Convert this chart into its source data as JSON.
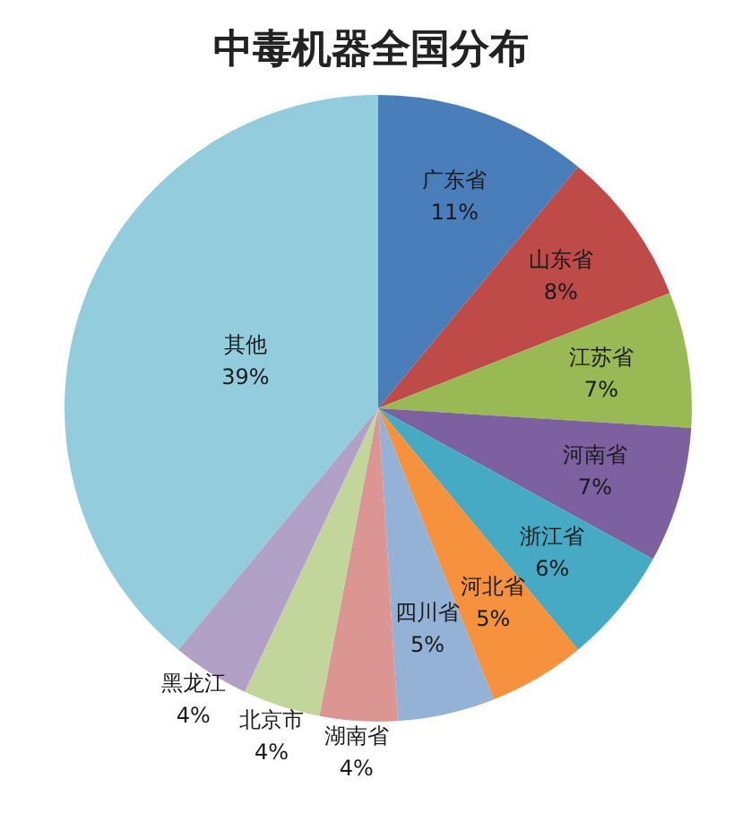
{
  "chart_data": {
    "type": "pie",
    "title": "中毒机器全国分布",
    "categories": [
      "广东省",
      "山东省",
      "江苏省",
      "河南省",
      "浙江省",
      "河北省",
      "四川省",
      "湖南省",
      "北京市",
      "黑龙江",
      "其他"
    ],
    "values": [
      11,
      8,
      7,
      7,
      6,
      5,
      5,
      4,
      4,
      4,
      39
    ],
    "value_labels": [
      "11%",
      "8%",
      "7%",
      "7%",
      "6%",
      "5%",
      "5%",
      "4%",
      "4%",
      "4%",
      "39%"
    ],
    "colors": [
      "#4a7ebb",
      "#be4b48",
      "#98b954",
      "#7d60a0",
      "#46aac5",
      "#f6923d",
      "#94b2d6",
      "#db9694",
      "#c2d59a",
      "#b2a1c7",
      "#93cddd"
    ],
    "legend": false
  }
}
